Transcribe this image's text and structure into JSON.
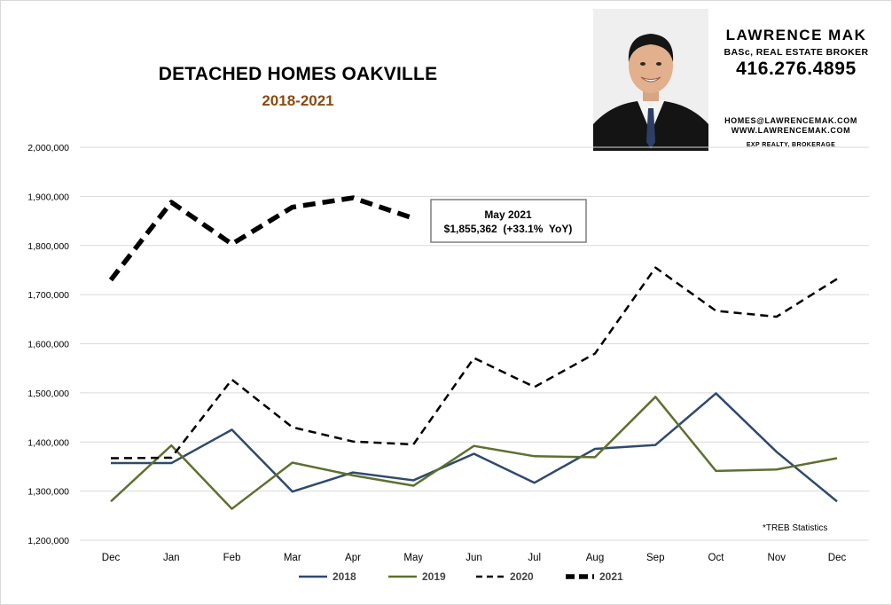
{
  "header": {
    "title": "DETACHED HOMES OAKVILLE",
    "subtitle": "2018-2021"
  },
  "agent": {
    "name": "LAWRENCE MAK",
    "credentials": "BASc, REAL ESTATE BROKER",
    "phone": "416.276.4895",
    "email": "HOMES@LAWRENCEMAK.COM",
    "website": "WWW.LAWRENCEMAK.COM",
    "brokerage": "EXP REALTY, BROKERAGE"
  },
  "annotation": {
    "line1": "May 2021",
    "line2": "$1,855,362  (+33.1%  YoY)"
  },
  "footnote": "*TREB Statistics",
  "colors": {
    "series_2018": "#2F4A6D",
    "series_2019": "#5E7031",
    "series_2020": "#000000",
    "series_2021": "#000000",
    "subtitle": "#8B4A12",
    "gridline": "#d9d9d9"
  },
  "chart_data": {
    "type": "line",
    "title": "DETACHED HOMES OAKVILLE",
    "subtitle": "2018-2021",
    "categories": [
      "Dec",
      "Jan",
      "Feb",
      "Mar",
      "Apr",
      "May",
      "Jun",
      "Jul",
      "Aug",
      "Sep",
      "Oct",
      "Nov",
      "Dec"
    ],
    "ylim": [
      1200000,
      2000000
    ],
    "yticks": [
      1200000,
      1300000,
      1400000,
      1500000,
      1600000,
      1700000,
      1800000,
      1900000,
      2000000
    ],
    "ytick_labels": [
      "1,200,000",
      "1,300,000",
      "1,400,000",
      "1,500,000",
      "1,600,000",
      "1,700,000",
      "1,800,000",
      "1,900,000",
      "2,000,000"
    ],
    "grid": true,
    "legend": "bottom",
    "series": [
      {
        "name": "2018",
        "style": "solid",
        "values": [
          1357000,
          1357000,
          1425000,
          1299000,
          1338000,
          1322000,
          1376000,
          1317000,
          1386000,
          1394000,
          1499000,
          1380000,
          1279000
        ]
      },
      {
        "name": "2019",
        "style": "solid",
        "values": [
          1279000,
          1393000,
          1264000,
          1358000,
          1332000,
          1311000,
          1392000,
          1371000,
          1369000,
          1492000,
          1341000,
          1344000,
          1367000
        ]
      },
      {
        "name": "2020",
        "style": "dashed",
        "values": [
          1367000,
          1368000,
          1527000,
          1430000,
          1401000,
          1395000,
          1571000,
          1512000,
          1580000,
          1755000,
          1667000,
          1655000,
          1732000
        ]
      },
      {
        "name": "2021",
        "style": "thick-dashed",
        "values": [
          1730000,
          1888000,
          1803000,
          1878000,
          1897000,
          1855362,
          null,
          null,
          null,
          null,
          null,
          null,
          null
        ]
      }
    ]
  }
}
